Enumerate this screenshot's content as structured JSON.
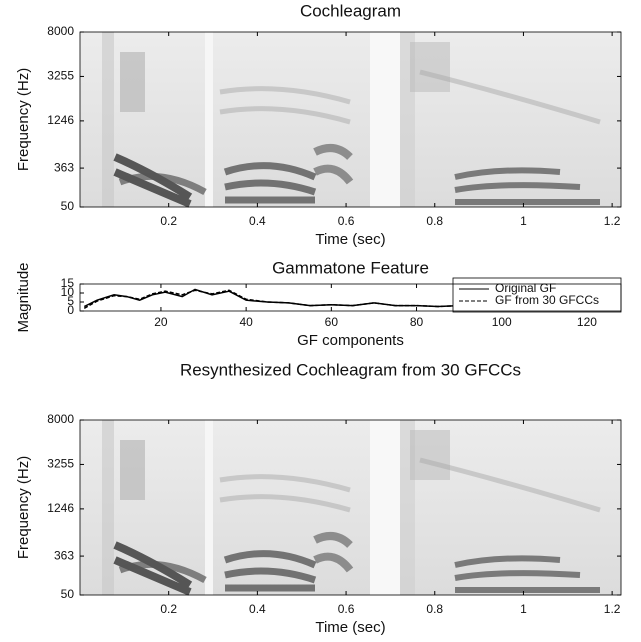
{
  "chart_data": [
    {
      "type": "heatmap",
      "title": "Cochleagram",
      "xlabel": "Time (sec)",
      "ylabel": "Frequency (Hz)",
      "xlim": [
        0,
        1.22
      ],
      "xticks": [
        0.2,
        0.4,
        0.6,
        0.8,
        1,
        1.2
      ],
      "ylim": [
        50,
        8000
      ],
      "yticks": [
        50,
        363,
        1246,
        3255,
        8000
      ],
      "yscale": "erb"
    },
    {
      "type": "line",
      "title": "Gammatone Feature",
      "xlabel": "GF components",
      "ylabel": "Magnitude",
      "xlim": [
        1,
        128
      ],
      "xticks": [
        20,
        40,
        60,
        80,
        100,
        120
      ],
      "ylim": [
        0,
        15
      ],
      "yticks": [
        0,
        5,
        10,
        15
      ],
      "legend": "upper right",
      "x": [
        2,
        5,
        9,
        12,
        15,
        18,
        21,
        25,
        28,
        32,
        36,
        40,
        45,
        50,
        55,
        60,
        65,
        70,
        75,
        80,
        85,
        90,
        95,
        99,
        105,
        110,
        115,
        120,
        124,
        128
      ],
      "series": [
        {
          "name": "Original GF",
          "color": "#000000",
          "linestyle": "solid",
          "values": [
            2.5,
            6,
            9,
            8,
            6,
            9,
            10.5,
            8,
            12,
            9,
            11,
            6,
            5,
            4.5,
            3,
            3.5,
            3,
            4.5,
            3,
            3,
            2.5,
            3,
            3,
            4.5,
            3.5,
            2.5,
            2,
            2,
            2.5,
            1.5
          ]
        },
        {
          "name": "GF from 30 GFCCs",
          "color": "#000000",
          "linestyle": "dashed",
          "values": [
            1.5,
            5.5,
            8.5,
            8,
            6.5,
            9.5,
            11,
            9,
            11.5,
            9.5,
            11.5,
            6.5,
            5,
            4.5,
            3,
            3.5,
            3,
            4.5,
            3,
            3,
            2.5,
            3,
            3,
            4.5,
            3.5,
            2.5,
            2,
            2,
            2.5,
            1.5
          ]
        }
      ]
    },
    {
      "type": "heatmap",
      "title": "Resynthesized Cochleagram from 30 GFCCs",
      "xlabel": "Time (sec)",
      "ylabel": "Frequency (Hz)",
      "xlim": [
        0,
        1.22
      ],
      "xticks": [
        0.2,
        0.4,
        0.6,
        0.8,
        1,
        1.2
      ],
      "ylim": [
        50,
        8000
      ],
      "yticks": [
        50,
        363,
        1246,
        3255,
        8000
      ],
      "yscale": "erb"
    }
  ]
}
